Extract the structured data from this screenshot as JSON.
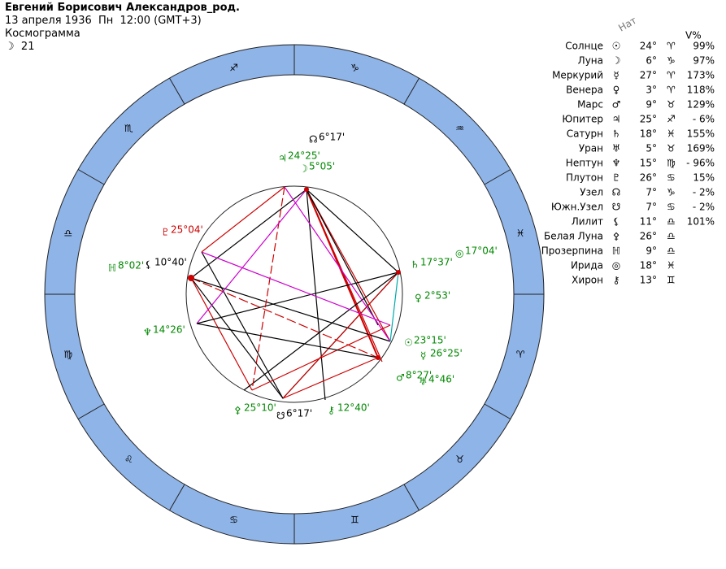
{
  "header": {
    "title": "Евгений Борисович Александров_род.",
    "date": "13 апреля 1936  Пн  12:00 (GMT+3)",
    "subtitle": "Космограмма",
    "moon_symbol": "☽",
    "moon_day": "21"
  },
  "table": {
    "column_natal": "Нат",
    "column_percent": "V%",
    "rows": [
      [
        "Солнце",
        "☉",
        "24°",
        "♈",
        "99%"
      ],
      [
        "Луна",
        "☽",
        "6°",
        "♑",
        "97%"
      ],
      [
        "Меркурий",
        "☿",
        "27°",
        "♈",
        "173%"
      ],
      [
        "Венера",
        "♀",
        "3°",
        "♈",
        "118%"
      ],
      [
        "Марс",
        "♂",
        "9°",
        "♉",
        "129%"
      ],
      [
        "Юпитер",
        "♃",
        "25°",
        "♐",
        "- 6%"
      ],
      [
        "Сатурн",
        "♄",
        "18°",
        "♓",
        "155%"
      ],
      [
        "Уран",
        "♅",
        "5°",
        "♉",
        "169%"
      ],
      [
        "Нептун",
        "♆",
        "15°",
        "♍",
        "- 96%"
      ],
      [
        "Плутон",
        "♇",
        "26°",
        "♋",
        "15%"
      ],
      [
        "Узел",
        "☊",
        "7°",
        "♑",
        "- 2%"
      ],
      [
        "Южн.Узел",
        "☋",
        "7°",
        "♋",
        "- 2%"
      ],
      [
        "Лилит",
        "⚸",
        "11°",
        "♎",
        "101%"
      ],
      [
        "Белая Луна",
        "⚴",
        "26°",
        "♎"
      ],
      [
        "Прозерпина",
        "ℍ",
        "9°",
        "♎"
      ],
      [
        "Ирида",
        "◎",
        "18°",
        "♓"
      ],
      [
        "Хирон",
        "⚷",
        "13°",
        "♊"
      ]
    ]
  },
  "wheel": {
    "signs": [
      "♑",
      "♒",
      "♓",
      "♈",
      "♉",
      "♊",
      "♋",
      "♌",
      "♍",
      "♎",
      "♏",
      "♐"
    ],
    "labels": [
      {
        "symbol": "☊",
        "text": "6°17'"
      },
      {
        "symbol": "♃",
        "text": "24°25'"
      },
      {
        "symbol": "☽",
        "text": "5°05'"
      },
      {
        "symbol": "♇",
        "text": "25°04'"
      },
      {
        "symbol": "ℍ",
        "text": "8°02'"
      },
      {
        "symbol": "⚸",
        "text": "10°40'"
      },
      {
        "symbol": "♄",
        "text": "17°37'"
      },
      {
        "symbol": "◎",
        "text": "17°04'"
      },
      {
        "symbol": "♀",
        "text": "2°53'"
      },
      {
        "symbol": "♆",
        "text": "14°26'"
      },
      {
        "symbol": "☉",
        "text": "23°15'"
      },
      {
        "symbol": "☿",
        "text": "26°25'"
      },
      {
        "symbol": "♂",
        "text": "8°27'"
      },
      {
        "symbol": "♅",
        "text": "4°46'"
      },
      {
        "symbol": "⚴",
        "text": "25°10'"
      },
      {
        "symbol": "⚷",
        "text": "12°40'"
      },
      {
        "symbol": "☋",
        "text": "6°17'"
      }
    ]
  }
}
